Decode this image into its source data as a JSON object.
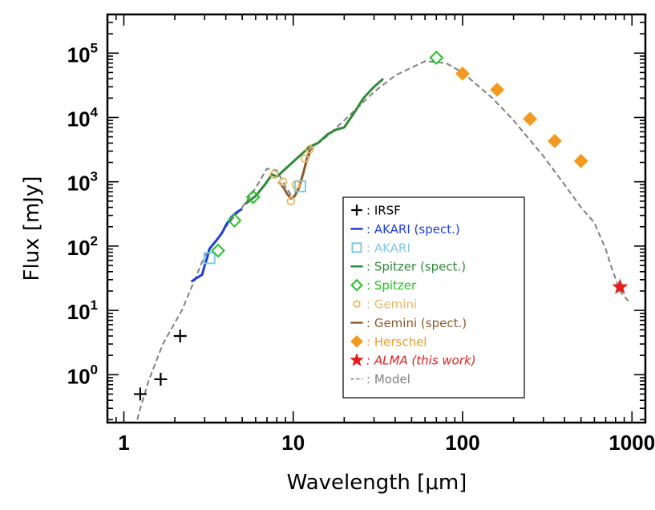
{
  "chart_data": {
    "type": "scatter",
    "x_label": "Wavelength [μm]",
    "y_label": "Flux [mJy]",
    "x_scale": "log",
    "y_scale": "log",
    "xlim": [
      0.8,
      1200
    ],
    "ylim": [
      0.18,
      400000
    ],
    "x_ticks": [
      {
        "value": 1,
        "label": "1"
      },
      {
        "value": 10,
        "label": "10"
      },
      {
        "value": 100,
        "label": "100"
      },
      {
        "value": 1000,
        "label": "1000"
      }
    ],
    "y_ticks": [
      {
        "value": 1,
        "base": "10",
        "exp": "0"
      },
      {
        "value": 10,
        "base": "10",
        "exp": "1"
      },
      {
        "value": 100,
        "base": "10",
        "exp": "2"
      },
      {
        "value": 1000,
        "base": "10",
        "exp": "3"
      },
      {
        "value": 10000,
        "base": "10",
        "exp": "4"
      },
      {
        "value": 100000,
        "base": "10",
        "exp": "5"
      }
    ],
    "legend_position": "lower-right",
    "legend": [
      {
        "series": "irsf",
        "label": "IRSF",
        "italic": false
      },
      {
        "series": "akari_spec",
        "label": "AKARI (spect.)",
        "italic": false
      },
      {
        "series": "akari",
        "label": "AKARI",
        "italic": false
      },
      {
        "series": "spitzer_spec",
        "label": "Spitzer (spect.)",
        "italic": false
      },
      {
        "series": "spitzer",
        "label": "Spitzer",
        "italic": false
      },
      {
        "series": "gemini",
        "label": "Gemini",
        "italic": false
      },
      {
        "series": "gemini_spec",
        "label": "Gemini (spect.)",
        "italic": false
      },
      {
        "series": "herschel",
        "label": "Herschel",
        "italic": false
      },
      {
        "series": "alma",
        "label": "ALMA (this work)",
        "italic": true
      },
      {
        "series": "model",
        "label": "Model",
        "italic": false
      }
    ],
    "series": [
      {
        "id": "model",
        "name": "Model",
        "kind": "dashed",
        "color": "#808080",
        "points": [
          [
            1.2,
            0.2
          ],
          [
            1.25,
            0.3
          ],
          [
            1.4,
            0.8
          ],
          [
            1.7,
            3
          ],
          [
            2.2,
            10
          ],
          [
            3.0,
            70
          ],
          [
            4.0,
            200
          ],
          [
            5.0,
            400
          ],
          [
            6.0,
            800
          ],
          [
            7.0,
            1600
          ],
          [
            8.0,
            1500
          ],
          [
            9.0,
            850
          ],
          [
            10.0,
            550
          ],
          [
            11.0,
            900
          ],
          [
            12.0,
            2000
          ],
          [
            13.0,
            3500
          ],
          [
            15.0,
            4500
          ],
          [
            20.0,
            9000
          ],
          [
            30.0,
            25000
          ],
          [
            40.0,
            45000
          ],
          [
            60.0,
            75000
          ],
          [
            80.0,
            70000
          ],
          [
            100.0,
            50000
          ],
          [
            150.0,
            20000
          ],
          [
            200.0,
            9000
          ],
          [
            300.0,
            2500
          ],
          [
            400.0,
            900
          ],
          [
            500.0,
            400
          ],
          [
            600.0,
            230
          ],
          [
            650.0,
            140
          ],
          [
            700.0,
            90
          ],
          [
            750.0,
            50
          ],
          [
            850.0,
            20
          ],
          [
            950.0,
            14
          ]
        ]
      },
      {
        "id": "akari_spec",
        "name": "AKARI (spect.)",
        "kind": "line",
        "color": "#1f3fd9",
        "points": [
          [
            2.5,
            28
          ],
          [
            2.7,
            32
          ],
          [
            2.9,
            36
          ],
          [
            3.0,
            50
          ],
          [
            3.1,
            65
          ],
          [
            3.2,
            90
          ],
          [
            3.3,
            100
          ],
          [
            3.5,
            120
          ],
          [
            3.8,
            160
          ],
          [
            4.0,
            210
          ],
          [
            4.3,
            280
          ],
          [
            4.6,
            330
          ],
          [
            5.0,
            380
          ]
        ]
      },
      {
        "id": "spitzer_spec",
        "name": "Spitzer (spect.)",
        "kind": "line",
        "color": "#2e8b3a",
        "points": [
          [
            5.2,
            450
          ],
          [
            6.0,
            600
          ],
          [
            6.8,
            900
          ],
          [
            7.5,
            1300
          ],
          [
            8.0,
            1200
          ],
          [
            12.5,
            3500
          ],
          [
            14.0,
            4000
          ],
          [
            16.0,
            5500
          ],
          [
            18.0,
            6500
          ],
          [
            20.0,
            7000
          ],
          [
            23.0,
            12000
          ],
          [
            26.0,
            20000
          ],
          [
            30.0,
            30000
          ],
          [
            34.0,
            40000
          ]
        ]
      },
      {
        "id": "gemini_spec",
        "name": "Gemini (spect.)",
        "kind": "line",
        "color": "#8b5a2b",
        "points": [
          [
            8.2,
            1000
          ],
          [
            8.8,
            800
          ],
          [
            9.2,
            650
          ],
          [
            9.7,
            550
          ],
          [
            10.2,
            600
          ],
          [
            10.8,
            800
          ],
          [
            11.5,
            1400
          ],
          [
            12.0,
            2200
          ],
          [
            12.6,
            3200
          ]
        ]
      },
      {
        "id": "irsf",
        "name": "IRSF",
        "kind": "plus",
        "color": "#000000",
        "points": [
          [
            1.25,
            0.5
          ],
          [
            1.65,
            0.85
          ],
          [
            2.15,
            4
          ]
        ]
      },
      {
        "id": "akari",
        "name": "AKARI",
        "kind": "square",
        "color": "#7ec8e8",
        "points": [
          [
            3.2,
            65
          ],
          [
            11.0,
            850
          ]
        ]
      },
      {
        "id": "spitzer",
        "name": "Spitzer",
        "kind": "diamond",
        "color": "#22c222",
        "points": [
          [
            3.6,
            85
          ],
          [
            4.5,
            250
          ],
          [
            5.8,
            580
          ],
          [
            70.0,
            85000
          ]
        ]
      },
      {
        "id": "gemini",
        "name": "Gemini",
        "kind": "circle",
        "color": "#e8b866",
        "points": [
          [
            7.7,
            1300
          ],
          [
            8.7,
            1000
          ],
          [
            9.7,
            500
          ],
          [
            10.4,
            900
          ],
          [
            11.7,
            2300
          ],
          [
            12.5,
            3200
          ]
        ]
      },
      {
        "id": "herschel",
        "name": "Herschel",
        "kind": "diamond_filled",
        "color": "#f39a1e",
        "points": [
          [
            100.0,
            48000
          ],
          [
            160.0,
            27000
          ],
          [
            250.0,
            9500
          ],
          [
            350.0,
            4300
          ],
          [
            500.0,
            2100
          ]
        ]
      },
      {
        "id": "alma",
        "name": "ALMA (this work)",
        "kind": "star",
        "color": "#e81c1c",
        "points": [
          [
            850.0,
            23
          ]
        ]
      }
    ]
  }
}
